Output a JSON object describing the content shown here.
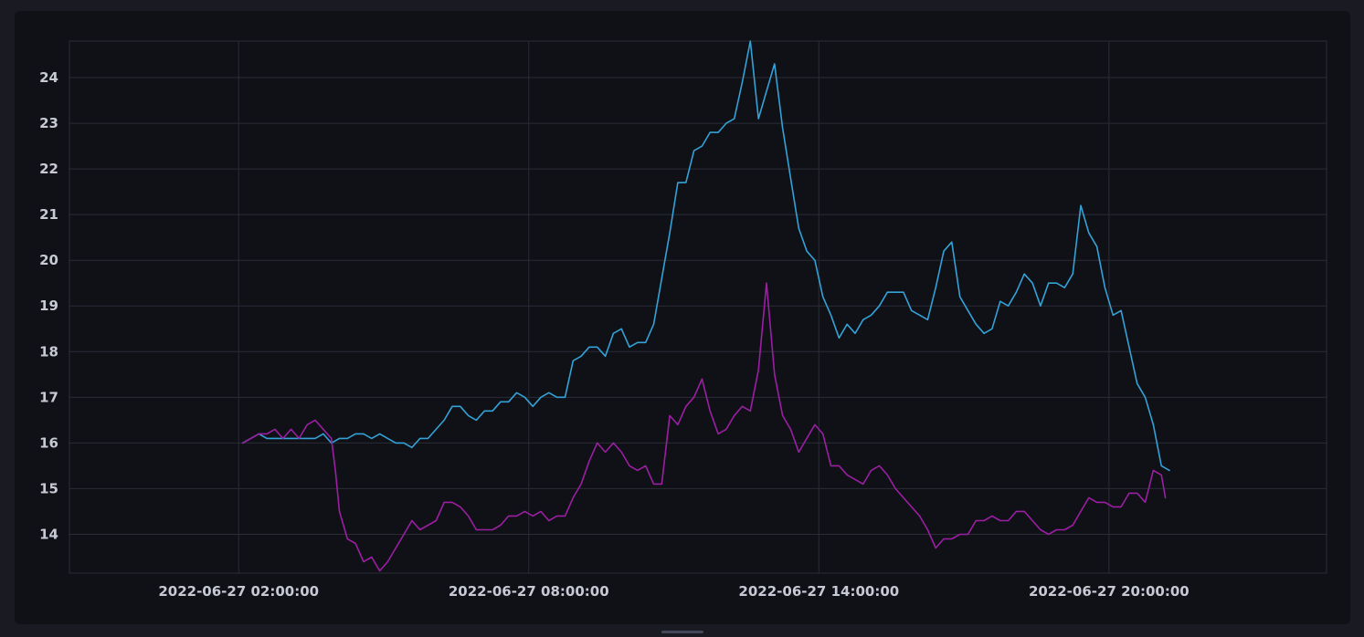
{
  "chart_data": {
    "type": "line",
    "x_tick_labels": [
      "2022-06-27 02:00:00",
      "2022-06-27 08:00:00",
      "2022-06-27 14:00:00",
      "2022-06-27 20:00:00"
    ],
    "y_tick_labels": [
      "14",
      "15",
      "16",
      "17",
      "18",
      "19",
      "20",
      "21",
      "22",
      "23",
      "24"
    ],
    "xlim": [
      "2022-06-26 22:30:00",
      "2022-06-28 00:30:00"
    ],
    "ylim": [
      13.15,
      24.8
    ],
    "grid": true,
    "legend": "none",
    "series": [
      {
        "color": "#33a2d6",
        "points": [
          [
            "2022-06-27 02:05:00",
            16.0
          ],
          [
            "2022-06-27 02:15:00",
            16.1
          ],
          [
            "2022-06-27 02:25:00",
            16.2
          ],
          [
            "2022-06-27 02:35:00",
            16.1
          ],
          [
            "2022-06-27 02:45:00",
            16.1
          ],
          [
            "2022-06-27 02:55:00",
            16.1
          ],
          [
            "2022-06-27 03:05:00",
            16.1
          ],
          [
            "2022-06-27 03:15:00",
            16.1
          ],
          [
            "2022-06-27 03:25:00",
            16.1
          ],
          [
            "2022-06-27 03:35:00",
            16.1
          ],
          [
            "2022-06-27 03:45:00",
            16.2
          ],
          [
            "2022-06-27 03:55:00",
            16.0
          ],
          [
            "2022-06-27 04:05:00",
            16.1
          ],
          [
            "2022-06-27 04:15:00",
            16.1
          ],
          [
            "2022-06-27 04:25:00",
            16.2
          ],
          [
            "2022-06-27 04:35:00",
            16.2
          ],
          [
            "2022-06-27 04:45:00",
            16.1
          ],
          [
            "2022-06-27 04:55:00",
            16.2
          ],
          [
            "2022-06-27 05:05:00",
            16.1
          ],
          [
            "2022-06-27 05:15:00",
            16.0
          ],
          [
            "2022-06-27 05:25:00",
            16.0
          ],
          [
            "2022-06-27 05:35:00",
            15.9
          ],
          [
            "2022-06-27 05:45:00",
            16.1
          ],
          [
            "2022-06-27 05:55:00",
            16.1
          ],
          [
            "2022-06-27 06:05:00",
            16.3
          ],
          [
            "2022-06-27 06:15:00",
            16.5
          ],
          [
            "2022-06-27 06:25:00",
            16.8
          ],
          [
            "2022-06-27 06:35:00",
            16.8
          ],
          [
            "2022-06-27 06:45:00",
            16.6
          ],
          [
            "2022-06-27 06:55:00",
            16.5
          ],
          [
            "2022-06-27 07:05:00",
            16.7
          ],
          [
            "2022-06-27 07:15:00",
            16.7
          ],
          [
            "2022-06-27 07:25:00",
            16.9
          ],
          [
            "2022-06-27 07:35:00",
            16.9
          ],
          [
            "2022-06-27 07:45:00",
            17.1
          ],
          [
            "2022-06-27 07:55:00",
            17.0
          ],
          [
            "2022-06-27 08:05:00",
            16.8
          ],
          [
            "2022-06-27 08:15:00",
            17.0
          ],
          [
            "2022-06-27 08:25:00",
            17.1
          ],
          [
            "2022-06-27 08:35:00",
            17.0
          ],
          [
            "2022-06-27 08:45:00",
            17.0
          ],
          [
            "2022-06-27 08:55:00",
            17.8
          ],
          [
            "2022-06-27 09:05:00",
            17.9
          ],
          [
            "2022-06-27 09:15:00",
            18.1
          ],
          [
            "2022-06-27 09:25:00",
            18.1
          ],
          [
            "2022-06-27 09:35:00",
            17.9
          ],
          [
            "2022-06-27 09:45:00",
            18.4
          ],
          [
            "2022-06-27 09:55:00",
            18.5
          ],
          [
            "2022-06-27 10:05:00",
            18.1
          ],
          [
            "2022-06-27 10:15:00",
            18.2
          ],
          [
            "2022-06-27 10:25:00",
            18.2
          ],
          [
            "2022-06-27 10:35:00",
            18.6
          ],
          [
            "2022-06-27 10:45:00",
            19.6
          ],
          [
            "2022-06-27 10:55:00",
            20.6
          ],
          [
            "2022-06-27 11:05:00",
            21.7
          ],
          [
            "2022-06-27 11:15:00",
            21.7
          ],
          [
            "2022-06-27 11:25:00",
            22.4
          ],
          [
            "2022-06-27 11:35:00",
            22.5
          ],
          [
            "2022-06-27 11:45:00",
            22.8
          ],
          [
            "2022-06-27 11:55:00",
            22.8
          ],
          [
            "2022-06-27 12:05:00",
            23.0
          ],
          [
            "2022-06-27 12:15:00",
            23.1
          ],
          [
            "2022-06-27 12:25:00",
            23.9
          ],
          [
            "2022-06-27 12:35:00",
            24.8
          ],
          [
            "2022-06-27 12:45:00",
            23.1
          ],
          [
            "2022-06-27 12:55:00",
            23.7
          ],
          [
            "2022-06-27 13:05:00",
            24.3
          ],
          [
            "2022-06-27 13:15:00",
            22.9
          ],
          [
            "2022-06-27 13:25:00",
            21.8
          ],
          [
            "2022-06-27 13:35:00",
            20.7
          ],
          [
            "2022-06-27 13:45:00",
            20.2
          ],
          [
            "2022-06-27 13:55:00",
            20.0
          ],
          [
            "2022-06-27 14:05:00",
            19.2
          ],
          [
            "2022-06-27 14:15:00",
            18.8
          ],
          [
            "2022-06-27 14:25:00",
            18.3
          ],
          [
            "2022-06-27 14:35:00",
            18.6
          ],
          [
            "2022-06-27 14:45:00",
            18.4
          ],
          [
            "2022-06-27 14:55:00",
            18.7
          ],
          [
            "2022-06-27 15:05:00",
            18.8
          ],
          [
            "2022-06-27 15:15:00",
            19.0
          ],
          [
            "2022-06-27 15:25:00",
            19.3
          ],
          [
            "2022-06-27 15:35:00",
            19.3
          ],
          [
            "2022-06-27 15:45:00",
            19.3
          ],
          [
            "2022-06-27 15:55:00",
            18.9
          ],
          [
            "2022-06-27 16:05:00",
            18.8
          ],
          [
            "2022-06-27 16:15:00",
            18.7
          ],
          [
            "2022-06-27 16:25:00",
            19.4
          ],
          [
            "2022-06-27 16:35:00",
            20.2
          ],
          [
            "2022-06-27 16:45:00",
            20.4
          ],
          [
            "2022-06-27 16:55:00",
            19.2
          ],
          [
            "2022-06-27 17:05:00",
            18.9
          ],
          [
            "2022-06-27 17:15:00",
            18.6
          ],
          [
            "2022-06-27 17:25:00",
            18.4
          ],
          [
            "2022-06-27 17:35:00",
            18.5
          ],
          [
            "2022-06-27 17:45:00",
            19.1
          ],
          [
            "2022-06-27 17:55:00",
            19.0
          ],
          [
            "2022-06-27 18:05:00",
            19.3
          ],
          [
            "2022-06-27 18:15:00",
            19.7
          ],
          [
            "2022-06-27 18:25:00",
            19.5
          ],
          [
            "2022-06-27 18:35:00",
            19.0
          ],
          [
            "2022-06-27 18:45:00",
            19.5
          ],
          [
            "2022-06-27 18:55:00",
            19.5
          ],
          [
            "2022-06-27 19:05:00",
            19.4
          ],
          [
            "2022-06-27 19:15:00",
            19.7
          ],
          [
            "2022-06-27 19:25:00",
            21.2
          ],
          [
            "2022-06-27 19:35:00",
            20.6
          ],
          [
            "2022-06-27 19:45:00",
            20.3
          ],
          [
            "2022-06-27 19:55:00",
            19.4
          ],
          [
            "2022-06-27 20:05:00",
            18.8
          ],
          [
            "2022-06-27 20:15:00",
            18.9
          ],
          [
            "2022-06-27 20:25:00",
            18.1
          ],
          [
            "2022-06-27 20:35:00",
            17.3
          ],
          [
            "2022-06-27 20:45:00",
            17.0
          ],
          [
            "2022-06-27 20:55:00",
            16.4
          ],
          [
            "2022-06-27 21:05:00",
            15.5
          ],
          [
            "2022-06-27 21:15:00",
            15.4
          ]
        ]
      },
      {
        "color": "#9c1fa3",
        "points": [
          [
            "2022-06-27 02:05:00",
            16.0
          ],
          [
            "2022-06-27 02:15:00",
            16.1
          ],
          [
            "2022-06-27 02:25:00",
            16.2
          ],
          [
            "2022-06-27 02:35:00",
            16.2
          ],
          [
            "2022-06-27 02:45:00",
            16.3
          ],
          [
            "2022-06-27 02:55:00",
            16.1
          ],
          [
            "2022-06-27 03:05:00",
            16.3
          ],
          [
            "2022-06-27 03:15:00",
            16.1
          ],
          [
            "2022-06-27 03:25:00",
            16.4
          ],
          [
            "2022-06-27 03:35:00",
            16.5
          ],
          [
            "2022-06-27 03:45:00",
            16.3
          ],
          [
            "2022-06-27 03:55:00",
            16.1
          ],
          [
            "2022-06-27 04:00:00",
            15.4
          ],
          [
            "2022-06-27 04:05:00",
            14.5
          ],
          [
            "2022-06-27 04:15:00",
            13.9
          ],
          [
            "2022-06-27 04:25:00",
            13.8
          ],
          [
            "2022-06-27 04:35:00",
            13.4
          ],
          [
            "2022-06-27 04:45:00",
            13.5
          ],
          [
            "2022-06-27 04:55:00",
            13.2
          ],
          [
            "2022-06-27 05:05:00",
            13.4
          ],
          [
            "2022-06-27 05:15:00",
            13.7
          ],
          [
            "2022-06-27 05:25:00",
            14.0
          ],
          [
            "2022-06-27 05:35:00",
            14.3
          ],
          [
            "2022-06-27 05:45:00",
            14.1
          ],
          [
            "2022-06-27 05:55:00",
            14.2
          ],
          [
            "2022-06-27 06:05:00",
            14.3
          ],
          [
            "2022-06-27 06:15:00",
            14.7
          ],
          [
            "2022-06-27 06:25:00",
            14.7
          ],
          [
            "2022-06-27 06:35:00",
            14.6
          ],
          [
            "2022-06-27 06:45:00",
            14.4
          ],
          [
            "2022-06-27 06:55:00",
            14.1
          ],
          [
            "2022-06-27 07:05:00",
            14.1
          ],
          [
            "2022-06-27 07:15:00",
            14.1
          ],
          [
            "2022-06-27 07:25:00",
            14.2
          ],
          [
            "2022-06-27 07:35:00",
            14.4
          ],
          [
            "2022-06-27 07:45:00",
            14.4
          ],
          [
            "2022-06-27 07:55:00",
            14.5
          ],
          [
            "2022-06-27 08:05:00",
            14.4
          ],
          [
            "2022-06-27 08:15:00",
            14.5
          ],
          [
            "2022-06-27 08:25:00",
            14.3
          ],
          [
            "2022-06-27 08:35:00",
            14.4
          ],
          [
            "2022-06-27 08:45:00",
            14.4
          ],
          [
            "2022-06-27 08:55:00",
            14.8
          ],
          [
            "2022-06-27 09:05:00",
            15.1
          ],
          [
            "2022-06-27 09:15:00",
            15.6
          ],
          [
            "2022-06-27 09:25:00",
            16.0
          ],
          [
            "2022-06-27 09:35:00",
            15.8
          ],
          [
            "2022-06-27 09:45:00",
            16.0
          ],
          [
            "2022-06-27 09:55:00",
            15.8
          ],
          [
            "2022-06-27 10:05:00",
            15.5
          ],
          [
            "2022-06-27 10:15:00",
            15.4
          ],
          [
            "2022-06-27 10:25:00",
            15.5
          ],
          [
            "2022-06-27 10:35:00",
            15.1
          ],
          [
            "2022-06-27 10:45:00",
            15.1
          ],
          [
            "2022-06-27 10:55:00",
            16.6
          ],
          [
            "2022-06-27 11:05:00",
            16.4
          ],
          [
            "2022-06-27 11:15:00",
            16.8
          ],
          [
            "2022-06-27 11:25:00",
            17.0
          ],
          [
            "2022-06-27 11:35:00",
            17.4
          ],
          [
            "2022-06-27 11:45:00",
            16.7
          ],
          [
            "2022-06-27 11:55:00",
            16.2
          ],
          [
            "2022-06-27 12:05:00",
            16.3
          ],
          [
            "2022-06-27 12:15:00",
            16.6
          ],
          [
            "2022-06-27 12:25:00",
            16.8
          ],
          [
            "2022-06-27 12:35:00",
            16.7
          ],
          [
            "2022-06-27 12:45:00",
            17.6
          ],
          [
            "2022-06-27 12:55:00",
            19.5
          ],
          [
            "2022-06-27 13:05:00",
            17.5
          ],
          [
            "2022-06-27 13:15:00",
            16.6
          ],
          [
            "2022-06-27 13:25:00",
            16.3
          ],
          [
            "2022-06-27 13:35:00",
            15.8
          ],
          [
            "2022-06-27 13:45:00",
            16.1
          ],
          [
            "2022-06-27 13:55:00",
            16.4
          ],
          [
            "2022-06-27 14:05:00",
            16.2
          ],
          [
            "2022-06-27 14:15:00",
            15.5
          ],
          [
            "2022-06-27 14:25:00",
            15.5
          ],
          [
            "2022-06-27 14:35:00",
            15.3
          ],
          [
            "2022-06-27 14:45:00",
            15.2
          ],
          [
            "2022-06-27 14:55:00",
            15.1
          ],
          [
            "2022-06-27 15:05:00",
            15.4
          ],
          [
            "2022-06-27 15:15:00",
            15.5
          ],
          [
            "2022-06-27 15:25:00",
            15.3
          ],
          [
            "2022-06-27 15:35:00",
            15.0
          ],
          [
            "2022-06-27 15:45:00",
            14.8
          ],
          [
            "2022-06-27 15:55:00",
            14.6
          ],
          [
            "2022-06-27 16:05:00",
            14.4
          ],
          [
            "2022-06-27 16:15:00",
            14.1
          ],
          [
            "2022-06-27 16:25:00",
            13.7
          ],
          [
            "2022-06-27 16:35:00",
            13.9
          ],
          [
            "2022-06-27 16:45:00",
            13.9
          ],
          [
            "2022-06-27 16:55:00",
            14.0
          ],
          [
            "2022-06-27 17:05:00",
            14.0
          ],
          [
            "2022-06-27 17:15:00",
            14.3
          ],
          [
            "2022-06-27 17:25:00",
            14.3
          ],
          [
            "2022-06-27 17:35:00",
            14.4
          ],
          [
            "2022-06-27 17:45:00",
            14.3
          ],
          [
            "2022-06-27 17:55:00",
            14.3
          ],
          [
            "2022-06-27 18:05:00",
            14.5
          ],
          [
            "2022-06-27 18:15:00",
            14.5
          ],
          [
            "2022-06-27 18:25:00",
            14.3
          ],
          [
            "2022-06-27 18:35:00",
            14.1
          ],
          [
            "2022-06-27 18:45:00",
            14.0
          ],
          [
            "2022-06-27 18:55:00",
            14.1
          ],
          [
            "2022-06-27 19:05:00",
            14.1
          ],
          [
            "2022-06-27 19:15:00",
            14.2
          ],
          [
            "2022-06-27 19:25:00",
            14.5
          ],
          [
            "2022-06-27 19:35:00",
            14.8
          ],
          [
            "2022-06-27 19:45:00",
            14.7
          ],
          [
            "2022-06-27 19:55:00",
            14.7
          ],
          [
            "2022-06-27 20:05:00",
            14.6
          ],
          [
            "2022-06-27 20:15:00",
            14.6
          ],
          [
            "2022-06-27 20:25:00",
            14.9
          ],
          [
            "2022-06-27 20:35:00",
            14.9
          ],
          [
            "2022-06-27 20:45:00",
            14.7
          ],
          [
            "2022-06-27 20:55:00",
            15.4
          ],
          [
            "2022-06-27 21:05:00",
            15.3
          ],
          [
            "2022-06-27 21:10:00",
            14.8
          ]
        ]
      }
    ]
  }
}
